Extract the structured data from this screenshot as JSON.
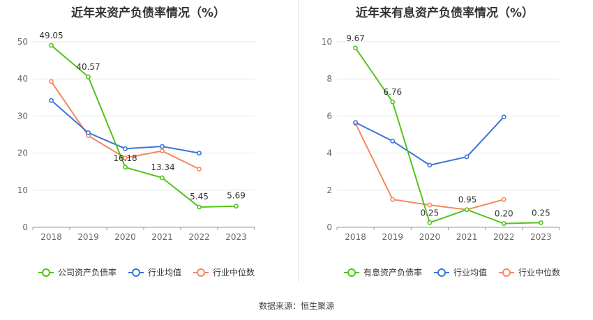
{
  "charts": [
    {
      "title": "近年来资产负债率情况（%）",
      "chart_data": {
        "type": "line",
        "title": "近年来资产负债率情况（%）",
        "categories": [
          "2018",
          "2019",
          "2020",
          "2021",
          "2022",
          "2023"
        ],
        "ylim": [
          0,
          50
        ],
        "yticks": [
          0,
          10,
          20,
          30,
          40,
          50
        ],
        "grid": true,
        "legend_position": "bottom",
        "series": [
          {
            "name": "公司资产负债率",
            "color": "#52c41a",
            "values": [
              49.05,
              40.57,
              16.18,
              13.34,
              5.45,
              5.69
            ],
            "labels": [
              "49.05",
              "40.57",
              "16.18",
              "13.34",
              "5.45",
              "5.69"
            ]
          },
          {
            "name": "行业均值",
            "color": "#3a75d6",
            "values": [
              34.2,
              25.5,
              21.2,
              21.8,
              20.0,
              null
            ]
          },
          {
            "name": "行业中位数",
            "color": "#f5885f",
            "values": [
              39.3,
              24.7,
              18.7,
              20.6,
              15.7,
              null
            ]
          }
        ]
      }
    },
    {
      "title": "近年来有息资产负债率情况（%）",
      "chart_data": {
        "type": "line",
        "title": "近年来有息资产负债率情况（%）",
        "categories": [
          "2018",
          "2019",
          "2020",
          "2021",
          "2022",
          "2023"
        ],
        "ylim": [
          0,
          10
        ],
        "yticks": [
          0,
          2,
          4,
          6,
          8,
          10
        ],
        "grid": true,
        "legend_position": "bottom",
        "series": [
          {
            "name": "有息资产负债率",
            "color": "#52c41a",
            "values": [
              9.67,
              6.76,
              0.25,
              0.95,
              0.2,
              0.25
            ],
            "labels": [
              "9.67",
              "6.76",
              "0.25",
              "0.95",
              "0.20",
              "0.25"
            ]
          },
          {
            "name": "行业均值",
            "color": "#3a75d6",
            "values": [
              5.65,
              4.65,
              3.35,
              3.8,
              5.95,
              null
            ]
          },
          {
            "name": "行业中位数",
            "color": "#f5885f",
            "values": [
              5.6,
              1.5,
              1.2,
              0.95,
              1.5,
              null
            ]
          }
        ]
      }
    }
  ],
  "footer": {
    "source": "数据来源：恒生聚源"
  }
}
